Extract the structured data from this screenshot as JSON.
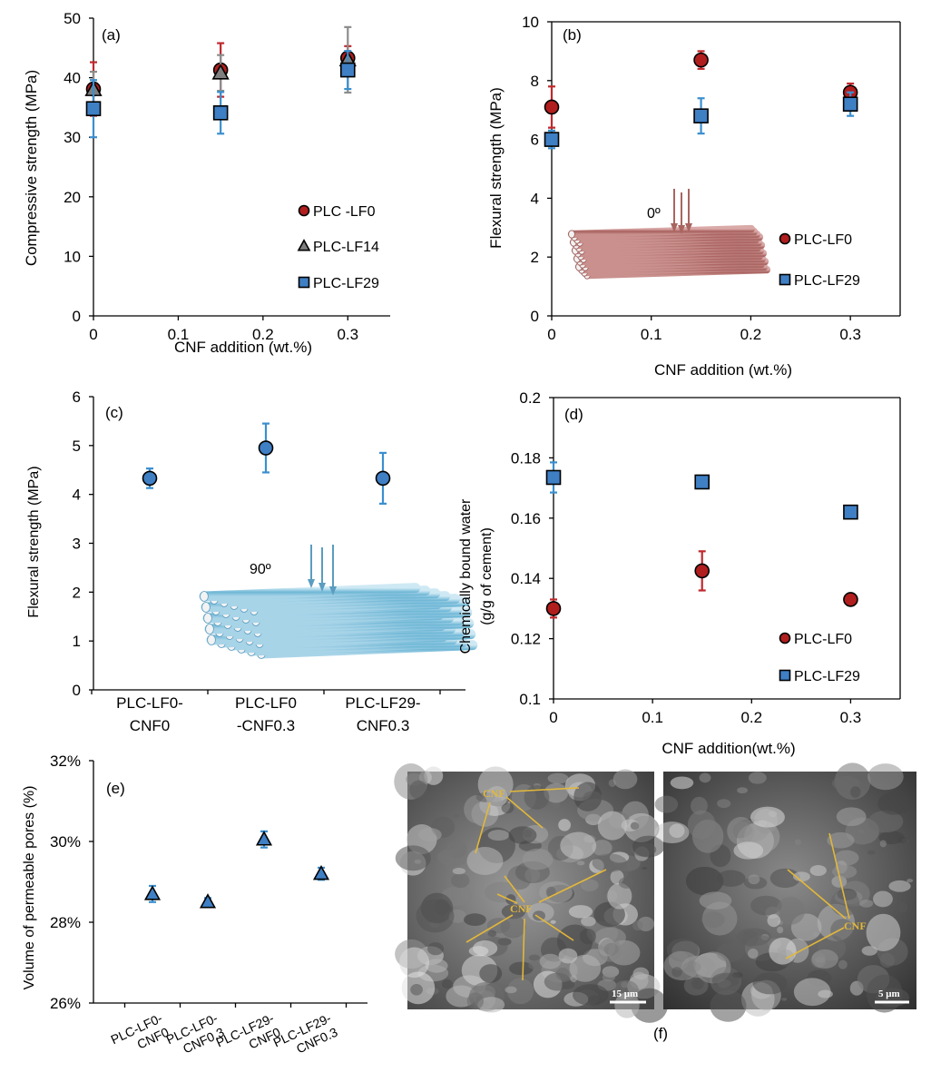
{
  "chart_data": [
    {
      "panel": "(a)",
      "type": "scatter",
      "xlabel": "CNF addition (wt.%)",
      "ylabel": "Compressive strength (MPa)",
      "xlim": [
        0,
        0.35
      ],
      "ylim": [
        0,
        50
      ],
      "xticks": [
        0,
        0.1,
        0.2,
        0.3
      ],
      "xtick_labels": [
        "0",
        "0.1",
        "0.2",
        "0.3"
      ],
      "yticks": [
        0,
        10,
        20,
        30,
        40,
        50
      ],
      "ytick_labels": [
        "0",
        "10",
        "20",
        "30",
        "40",
        "50"
      ],
      "legend_position": "bottom-right",
      "series": [
        {
          "name": "PLC -LF0",
          "marker": "circle",
          "color": "#b01e1e",
          "err_color": "#c0282c",
          "x": [
            0,
            0.15,
            0.3
          ],
          "y": [
            38.1,
            41.3,
            43.3
          ],
          "err": [
            4.5,
            4.5,
            2.0
          ]
        },
        {
          "name": "PLC-LF14",
          "marker": "triangle",
          "color": "#7f7f7f",
          "err_color": "#8c8c8c",
          "x": [
            0,
            0.15,
            0.3
          ],
          "y": [
            38.0,
            40.8,
            43.0
          ],
          "err": [
            3.0,
            3.0,
            5.5
          ]
        },
        {
          "name": "PLC-LF29",
          "marker": "square",
          "color": "#3f7fc4",
          "err_color": "#3a8fcf",
          "x": [
            0,
            0.15,
            0.3
          ],
          "y": [
            34.8,
            34.1,
            41.3
          ],
          "err": [
            4.8,
            3.5,
            3.2
          ]
        }
      ]
    },
    {
      "panel": "(b)",
      "type": "scatter",
      "xlabel": "CNF addition (wt.%)",
      "ylabel": "Flexural strength (MPa)",
      "xlim": [
        0,
        0.35
      ],
      "ylim": [
        0,
        10
      ],
      "xticks": [
        0,
        0.1,
        0.2,
        0.3
      ],
      "xtick_labels": [
        "0",
        "0.1",
        "0.2",
        "0.3"
      ],
      "yticks": [
        0,
        2,
        4,
        6,
        8,
        10
      ],
      "ytick_labels": [
        "0",
        "2",
        "4",
        "6",
        "8",
        "10"
      ],
      "legend_position": "bottom-right",
      "annotations": [
        "0º"
      ],
      "series": [
        {
          "name": "PLC-LF0",
          "marker": "circle",
          "color": "#b01e1e",
          "err_color": "#c0282c",
          "x": [
            0,
            0.15,
            0.3
          ],
          "y": [
            7.1,
            8.7,
            7.6
          ],
          "err": [
            0.7,
            0.3,
            0.3
          ]
        },
        {
          "name": "PLC-LF29",
          "marker": "square",
          "color": "#3f7fc4",
          "err_color": "#3a8fcf",
          "x": [
            0,
            0.15,
            0.3
          ],
          "y": [
            6.0,
            6.8,
            7.2
          ],
          "err": [
            0.3,
            0.6,
            0.4
          ]
        }
      ]
    },
    {
      "panel": "(c)",
      "type": "scatter",
      "xlabel": "",
      "ylabel": "Flexural strength (MPa)",
      "categories": [
        "PLC-LF0-\nCNF0",
        "PLC-LF0\n-CNF0.3",
        "PLC-LF29-\nCNF0.3"
      ],
      "ylim": [
        0,
        6
      ],
      "yticks": [
        0,
        1,
        2,
        3,
        4,
        5,
        6
      ],
      "ytick_labels": [
        "0",
        "1",
        "2",
        "3",
        "4",
        "5",
        "6"
      ],
      "annotations": [
        "90º"
      ],
      "series": [
        {
          "marker": "circle",
          "color": "#3f7fc4",
          "err_color": "#3a8fcf",
          "values": [
            4.33,
            4.95,
            4.33
          ],
          "err": [
            0.2,
            0.5,
            0.52
          ]
        }
      ]
    },
    {
      "panel": "(d)",
      "type": "scatter",
      "xlabel": "CNF addition(wt.%)",
      "ylabel": "Chemically bound water",
      "ylabel2": "(g/g of cement)",
      "xlim": [
        0,
        0.35
      ],
      "ylim": [
        0.1,
        0.2
      ],
      "xticks": [
        0,
        0.1,
        0.2,
        0.3
      ],
      "xtick_labels": [
        "0",
        "0.1",
        "0.2",
        "0.3"
      ],
      "yticks": [
        0.1,
        0.12,
        0.14,
        0.16,
        0.18,
        0.2
      ],
      "ytick_labels": [
        "0.1",
        "0.12",
        "0.14",
        "0.16",
        "0.18",
        "0.2"
      ],
      "legend_position": "bottom-right",
      "series": [
        {
          "name": "PLC-LF0",
          "marker": "circle",
          "color": "#b01e1e",
          "err_color": "#c0282c",
          "x": [
            0,
            0.15,
            0.3
          ],
          "y": [
            0.13,
            0.1425,
            0.133
          ],
          "err": [
            0.003,
            0.0065,
            0.001
          ]
        },
        {
          "name": "PLC-LF29",
          "marker": "square",
          "color": "#3f7fc4",
          "err_color": "#3a8fcf",
          "x": [
            0,
            0.15,
            0.3
          ],
          "y": [
            0.1735,
            0.172,
            0.162
          ],
          "err": [
            0.005,
            0.001,
            0.001
          ]
        }
      ]
    },
    {
      "panel": "(e)",
      "type": "scatter",
      "xlabel": "",
      "ylabel": "Volume of permeable pores (%)",
      "categories": [
        "PLC-LF0-\nCNF0",
        "PLC-LF0-\nCNF0.3",
        "PLC-LF29-\nCNF0",
        "PLC-LF29-\nCNF0.3"
      ],
      "ylim": [
        26,
        32
      ],
      "yticks": [
        26,
        28,
        30,
        32
      ],
      "ytick_labels": [
        "26%",
        "28%",
        "30%",
        "32%"
      ],
      "series": [
        {
          "marker": "triangle",
          "color": "#3f7fc4",
          "err_color": "#3a8fcf",
          "values": [
            28.7,
            28.5,
            30.05,
            29.2
          ],
          "err": [
            0.2,
            0.1,
            0.2,
            0.15
          ]
        }
      ]
    }
  ],
  "micrographs": {
    "panel_label": "(f)",
    "left": {
      "labels": [
        "CNF",
        "CNF"
      ],
      "scale_bar": "15 μm"
    },
    "right": {
      "labels": [
        "CNF"
      ],
      "scale_bar": "5 μm"
    }
  }
}
